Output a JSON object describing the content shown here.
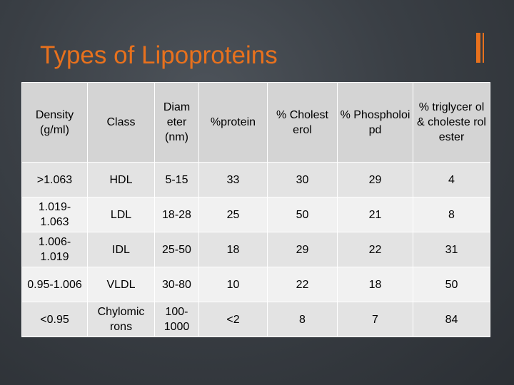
{
  "slide": {
    "title": "Types of Lipoproteins"
  },
  "colors": {
    "accent": "#e8711d",
    "background": "#3a3f45",
    "row_odd": "#e3e3e3",
    "row_even": "#f1f1f1",
    "header": "#d4d4d4"
  },
  "table": {
    "headers": [
      "Density (g/ml)",
      "Class",
      "Diam eter (nm)",
      "%protein",
      "% Cholest erol",
      "% Phospholoi pd",
      "% triglycer ol & choleste rol ester"
    ],
    "rows": [
      [
        ">1.063",
        "HDL",
        "5-15",
        "33",
        "30",
        "29",
        "4"
      ],
      [
        "1.019-1.063",
        "LDL",
        "18-28",
        "25",
        "50",
        "21",
        "8"
      ],
      [
        "1.006-1.019",
        "IDL",
        "25-50",
        "18",
        "29",
        "22",
        "31"
      ],
      [
        "0.95-1.006",
        "VLDL",
        "30-80",
        "10",
        "22",
        "18",
        "50"
      ],
      [
        "<0.95",
        "Chylomic rons",
        "100-1000",
        "<2",
        "8",
        "7",
        "84"
      ]
    ]
  }
}
